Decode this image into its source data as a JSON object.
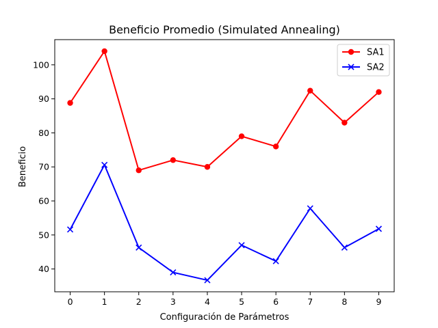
{
  "chart_data": {
    "type": "line",
    "title": "Beneficio Promedio (Simulated Annealing)",
    "xlabel": "Configuración de Parámetros",
    "ylabel": "Beneficio",
    "x": [
      0,
      1,
      2,
      3,
      4,
      5,
      6,
      7,
      8,
      9
    ],
    "xlim": [
      -0.45,
      9.45
    ],
    "ylim": [
      33.3,
      107.4
    ],
    "yticks": [
      40,
      50,
      60,
      70,
      80,
      90,
      100
    ],
    "grid": false,
    "legend_position": "top-right",
    "series": [
      {
        "name": "SA1",
        "color": "#ff0000",
        "marker": "circle",
        "values": [
          88.8,
          104.0,
          69.0,
          72.0,
          70.0,
          79.0,
          76.0,
          92.4,
          83.0,
          92.0
        ]
      },
      {
        "name": "SA2",
        "color": "#0000ff",
        "marker": "x",
        "values": [
          51.6,
          70.6,
          46.3,
          39.0,
          36.7,
          47.0,
          42.3,
          57.8,
          46.3,
          51.8
        ]
      }
    ]
  }
}
